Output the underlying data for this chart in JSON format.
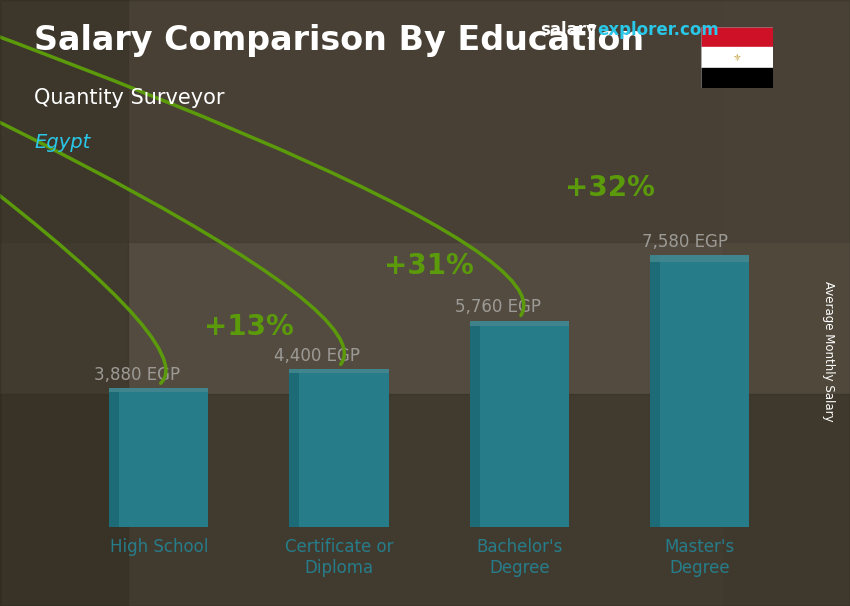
{
  "title_main": "Salary Comparison By Education",
  "title_sub": "Quantity Surveyor",
  "title_country": "Egypt",
  "watermark_salary": "salary",
  "watermark_explorer": "explorer",
  "watermark_com": ".com",
  "ylabel": "Average Monthly Salary",
  "categories": [
    "High School",
    "Certificate or\nDiploma",
    "Bachelor's\nDegree",
    "Master's\nDegree"
  ],
  "values": [
    3880,
    4400,
    5760,
    7580
  ],
  "labels": [
    "3,880 EGP",
    "4,400 EGP",
    "5,760 EGP",
    "7,580 EGP"
  ],
  "pct_positions": [
    [
      0,
      1,
      "+13%"
    ],
    [
      1,
      2,
      "+31%"
    ],
    [
      2,
      3,
      "+32%"
    ]
  ],
  "bar_color_main": "#29C8E8",
  "bar_color_left": "#1AAAC8",
  "bar_color_top": "#60DDEF",
  "pct_color": "#88FF00",
  "arrow_color": "#88FF00",
  "bg_color": "#6B6B5A",
  "overlay_color": "#404035",
  "text_color_white": "#FFFFFF",
  "text_color_cyan": "#29C8E8",
  "watermark_white": "#FFFFFF",
  "watermark_cyan": "#29C8E8",
  "figsize": [
    8.5,
    6.06
  ],
  "dpi": 100,
  "ylim": [
    0,
    9800
  ],
  "bar_width": 0.55,
  "label_fontsize": 12,
  "pct_fontsize": 20,
  "title_fontsize": 24,
  "sub_fontsize": 15,
  "country_fontsize": 14,
  "xlabel_fontsize": 12,
  "watermark_fontsize": 12
}
